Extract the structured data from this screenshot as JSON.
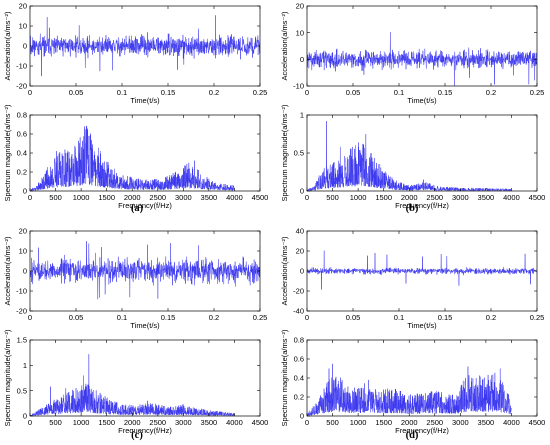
{
  "chart_data": [
    {
      "id": "a-time",
      "type": "line",
      "xlabel": "Time(t/s)",
      "ylabel": "Acceleration(a/ms⁻²)",
      "xlim": [
        0,
        0.25
      ],
      "ylim": [
        -20,
        20
      ],
      "xticks": [
        "0",
        "0.05",
        "0.1",
        "0.15",
        "0.2",
        "0.25"
      ],
      "yticks": [
        "-20",
        "-10",
        "0",
        "10",
        "20"
      ],
      "signal": {
        "amp": 5,
        "spikes": 11,
        "spike_amp": 12,
        "seed": 11
      },
      "color": "#3b37f0"
    },
    {
      "id": "a-spectrum",
      "type": "line",
      "xlabel": "Frequency(f/Hz)",
      "ylabel": "Spectrum magnitude(a/ms⁻²)",
      "xlim": [
        0,
        4500
      ],
      "ylim": [
        0,
        0.8
      ],
      "x_end": 4000,
      "xticks": [
        "0",
        "500",
        "1000",
        "1500",
        "2000",
        "2500",
        "3000",
        "3500",
        "4000",
        "4500"
      ],
      "yticks": [
        "0",
        "0.2",
        "0.4",
        "0.6",
        "0.8"
      ],
      "envelope": [
        [
          0,
          0.01
        ],
        [
          150,
          0.05
        ],
        [
          400,
          0.2
        ],
        [
          600,
          0.3
        ],
        [
          800,
          0.28
        ],
        [
          1000,
          0.4
        ],
        [
          1100,
          0.48
        ],
        [
          1200,
          0.4
        ],
        [
          1350,
          0.3
        ],
        [
          1600,
          0.18
        ],
        [
          1800,
          0.12
        ],
        [
          2200,
          0.08
        ],
        [
          2600,
          0.09
        ],
        [
          2900,
          0.15
        ],
        [
          3100,
          0.2
        ],
        [
          3300,
          0.15
        ],
        [
          3600,
          0.06
        ],
        [
          4000,
          0.04
        ]
      ],
      "peaks": [
        [
          1080,
          0.65
        ],
        [
          1150,
          0.58
        ],
        [
          520,
          0.42
        ],
        [
          700,
          0.4
        ],
        [
          3220,
          0.32
        ]
      ],
      "seed": 21,
      "color": "#3b37f0"
    },
    {
      "id": "b-time",
      "type": "line",
      "xlabel": "Time(t/s)",
      "ylabel": "Acceleration(a/ms⁻²)",
      "xlim": [
        0,
        0.25
      ],
      "ylim": [
        -10,
        20
      ],
      "xticks": [
        "0",
        "0.05",
        "0.1",
        "0.15",
        "0.2",
        "0.25"
      ],
      "yticks": [
        "-10",
        "0",
        "10",
        "20"
      ],
      "signal": {
        "amp": 3.5,
        "spikes": 8,
        "spike_amp": 8,
        "seed": 31
      },
      "color": "#3b37f0"
    },
    {
      "id": "b-spectrum",
      "type": "line",
      "xlabel": "Frequency(f/Hz)",
      "ylabel": "Spectrum magnitude(a/ms⁻²)",
      "xlim": [
        0,
        4500
      ],
      "ylim": [
        0,
        1
      ],
      "x_end": 4000,
      "xticks": [
        "0",
        "500",
        "1000",
        "1500",
        "2000",
        "2500",
        "3000",
        "3500",
        "4000",
        "4500"
      ],
      "yticks": [
        "0",
        "0.5",
        "1"
      ],
      "envelope": [
        [
          0,
          0.01
        ],
        [
          150,
          0.05
        ],
        [
          300,
          0.2
        ],
        [
          500,
          0.25
        ],
        [
          700,
          0.3
        ],
        [
          900,
          0.4
        ],
        [
          1100,
          0.45
        ],
        [
          1300,
          0.3
        ],
        [
          1500,
          0.2
        ],
        [
          1700,
          0.1
        ],
        [
          2000,
          0.05
        ],
        [
          2300,
          0.08
        ],
        [
          2600,
          0.04
        ],
        [
          3000,
          0.03
        ],
        [
          4000,
          0.02
        ]
      ],
      "peaks": [
        [
          380,
          0.92
        ],
        [
          1150,
          0.75
        ],
        [
          1080,
          0.62
        ],
        [
          650,
          0.58
        ],
        [
          2280,
          0.15
        ]
      ],
      "seed": 41,
      "color": "#3b37f0"
    },
    {
      "id": "c-time",
      "type": "line",
      "xlabel": "Time(t/s)",
      "ylabel": "Acceleration(a/ms⁻²)",
      "xlim": [
        0,
        0.25
      ],
      "ylim": [
        -20,
        20
      ],
      "xticks": [
        "0",
        "0.05",
        "0.1",
        "0.15",
        "0.2",
        "0.25"
      ],
      "yticks": [
        "-20",
        "-10",
        "0",
        "10",
        "20"
      ],
      "signal": {
        "amp": 6,
        "spikes": 14,
        "spike_amp": 12,
        "seed": 51
      },
      "color": "#3b37f0"
    },
    {
      "id": "c-spectrum",
      "type": "line",
      "xlabel": "Frequency(f/Hz)",
      "ylabel": "Spectrum magnitude(a/ms⁻²)",
      "xlim": [
        0,
        4500
      ],
      "ylim": [
        0,
        1.5
      ],
      "x_end": 4000,
      "xticks": [
        "0",
        "500",
        "1000",
        "1500",
        "2000",
        "2500",
        "3000",
        "3500",
        "4000",
        "4500"
      ],
      "yticks": [
        "0",
        "0.5",
        "1",
        "1.5"
      ],
      "envelope": [
        [
          0,
          0.01
        ],
        [
          200,
          0.1
        ],
        [
          400,
          0.2
        ],
        [
          600,
          0.25
        ],
        [
          800,
          0.35
        ],
        [
          1000,
          0.4
        ],
        [
          1150,
          0.45
        ],
        [
          1300,
          0.35
        ],
        [
          1500,
          0.25
        ],
        [
          1800,
          0.15
        ],
        [
          2100,
          0.15
        ],
        [
          2400,
          0.18
        ],
        [
          2700,
          0.12
        ],
        [
          3000,
          0.16
        ],
        [
          3300,
          0.1
        ],
        [
          3700,
          0.06
        ],
        [
          4000,
          0.04
        ]
      ],
      "peaks": [
        [
          1150,
          1.22
        ],
        [
          1050,
          0.8
        ],
        [
          400,
          0.58
        ],
        [
          700,
          0.55
        ],
        [
          2300,
          0.3
        ]
      ],
      "seed": 61,
      "color": "#3b37f0"
    },
    {
      "id": "d-time",
      "type": "line",
      "xlabel": "Time(t/s)",
      "ylabel": "Acceleration(a/ms⁻²)",
      "xlim": [
        0,
        0.25
      ],
      "ylim": [
        -40,
        40
      ],
      "xticks": [
        "0",
        "0.05",
        "0.1",
        "0.15",
        "0.2",
        "0.25"
      ],
      "yticks": [
        "-40",
        "-20",
        "0",
        "20",
        "40"
      ],
      "signal": {
        "amp": 3,
        "spikes": 12,
        "spike_amp": 16,
        "seed": 71
      },
      "color": "#3b37f0"
    },
    {
      "id": "d-spectrum",
      "type": "line",
      "xlabel": "Frequency(f/Hz)",
      "ylabel": "Spectrum magnitude(a/ms⁻²)",
      "xlim": [
        0,
        4500
      ],
      "ylim": [
        0,
        0.8
      ],
      "x_end": 4000,
      "xticks": [
        "0",
        "500",
        "1000",
        "1500",
        "2000",
        "2500",
        "3000",
        "3500",
        "4000",
        "4500"
      ],
      "yticks": [
        "0",
        "0.2",
        "0.4",
        "0.6",
        "0.8"
      ],
      "envelope": [
        [
          0,
          0.02
        ],
        [
          200,
          0.1
        ],
        [
          400,
          0.25
        ],
        [
          600,
          0.3
        ],
        [
          800,
          0.22
        ],
        [
          1000,
          0.2
        ],
        [
          1200,
          0.25
        ],
        [
          1400,
          0.18
        ],
        [
          1700,
          0.2
        ],
        [
          2000,
          0.15
        ],
        [
          2300,
          0.17
        ],
        [
          2600,
          0.18
        ],
        [
          2900,
          0.15
        ],
        [
          3100,
          0.28
        ],
        [
          3300,
          0.3
        ],
        [
          3500,
          0.28
        ],
        [
          3700,
          0.32
        ],
        [
          3900,
          0.2
        ],
        [
          4000,
          0.1
        ]
      ],
      "peaks": [
        [
          500,
          0.55
        ],
        [
          430,
          0.5
        ],
        [
          3150,
          0.52
        ],
        [
          3780,
          0.5
        ],
        [
          1200,
          0.38
        ]
      ],
      "seed": 81,
      "color": "#3b37f0"
    }
  ],
  "panel_labels": [
    "(a)",
    "(b)",
    "(c)",
    "(d)"
  ]
}
